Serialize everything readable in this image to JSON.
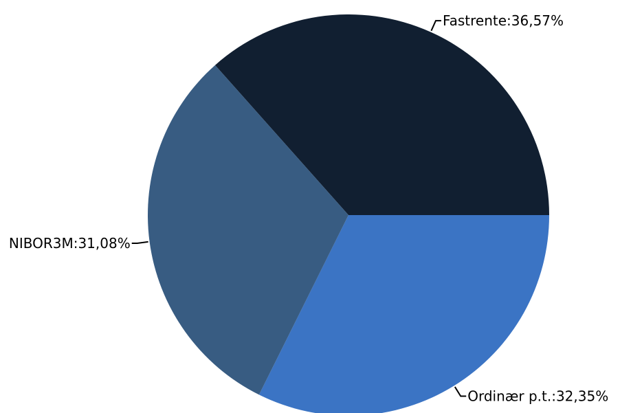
{
  "chart_data": {
    "type": "pie",
    "slices": [
      {
        "name": "Fastrente",
        "value": 36.57,
        "label": "Fastrente:36,57%",
        "color": "#111f31"
      },
      {
        "name": "Ordinær p.t.",
        "value": 32.35,
        "label": "Ordinær p.t.:32,35%",
        "color": "#3b74c4"
      },
      {
        "name": "NIBOR3M",
        "value": 31.08,
        "label": "NIBOR3M:31,08%",
        "color": "#385c82"
      }
    ],
    "start_angle_deg": 0,
    "direction": "counterclockwise-from-east",
    "legend": "none"
  }
}
